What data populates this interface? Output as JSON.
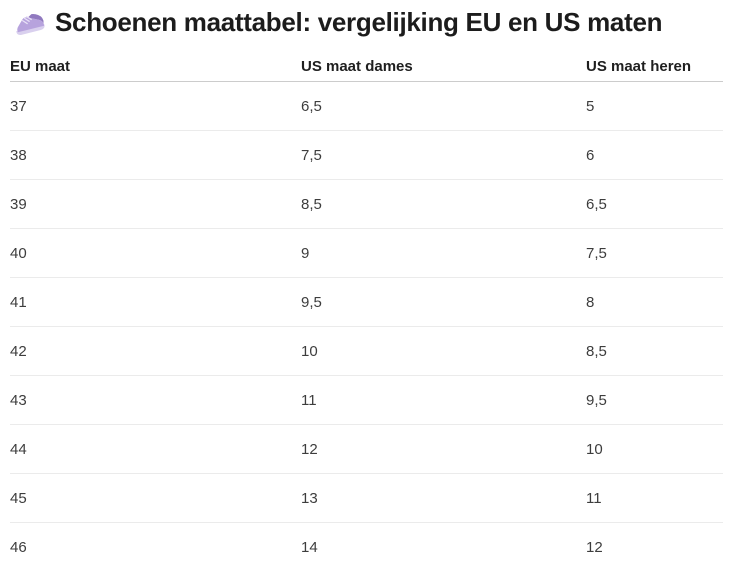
{
  "page": {
    "title": "Schoenen maattabel: vergelijking EU en US maten",
    "title_icon": "running-shoe-emoji"
  },
  "table": {
    "columns": [
      "EU maat",
      "US maat dames",
      "US maat heren"
    ],
    "rows": [
      [
        "37",
        "6,5",
        "5"
      ],
      [
        "38",
        "7,5",
        "6"
      ],
      [
        "39",
        "8,5",
        "6,5"
      ],
      [
        "40",
        "9",
        "7,5"
      ],
      [
        "41",
        "9,5",
        "8"
      ],
      [
        "42",
        "10",
        "8,5"
      ],
      [
        "43",
        "11",
        "9,5"
      ],
      [
        "44",
        "12",
        "10"
      ],
      [
        "45",
        "13",
        "11"
      ],
      [
        "46",
        "14",
        "12"
      ]
    ]
  },
  "colors": {
    "title_text": "#1c1c1c",
    "header_text": "#1f1f1f",
    "cell_text": "#3d3d3d",
    "header_border": "#cccccc",
    "row_border": "#ebebeb",
    "shoe_body": "#b7a3dd",
    "shoe_shade": "#9079bf",
    "shoe_sole": "#d9d0ee",
    "shoe_lace": "#e8e1f6"
  }
}
